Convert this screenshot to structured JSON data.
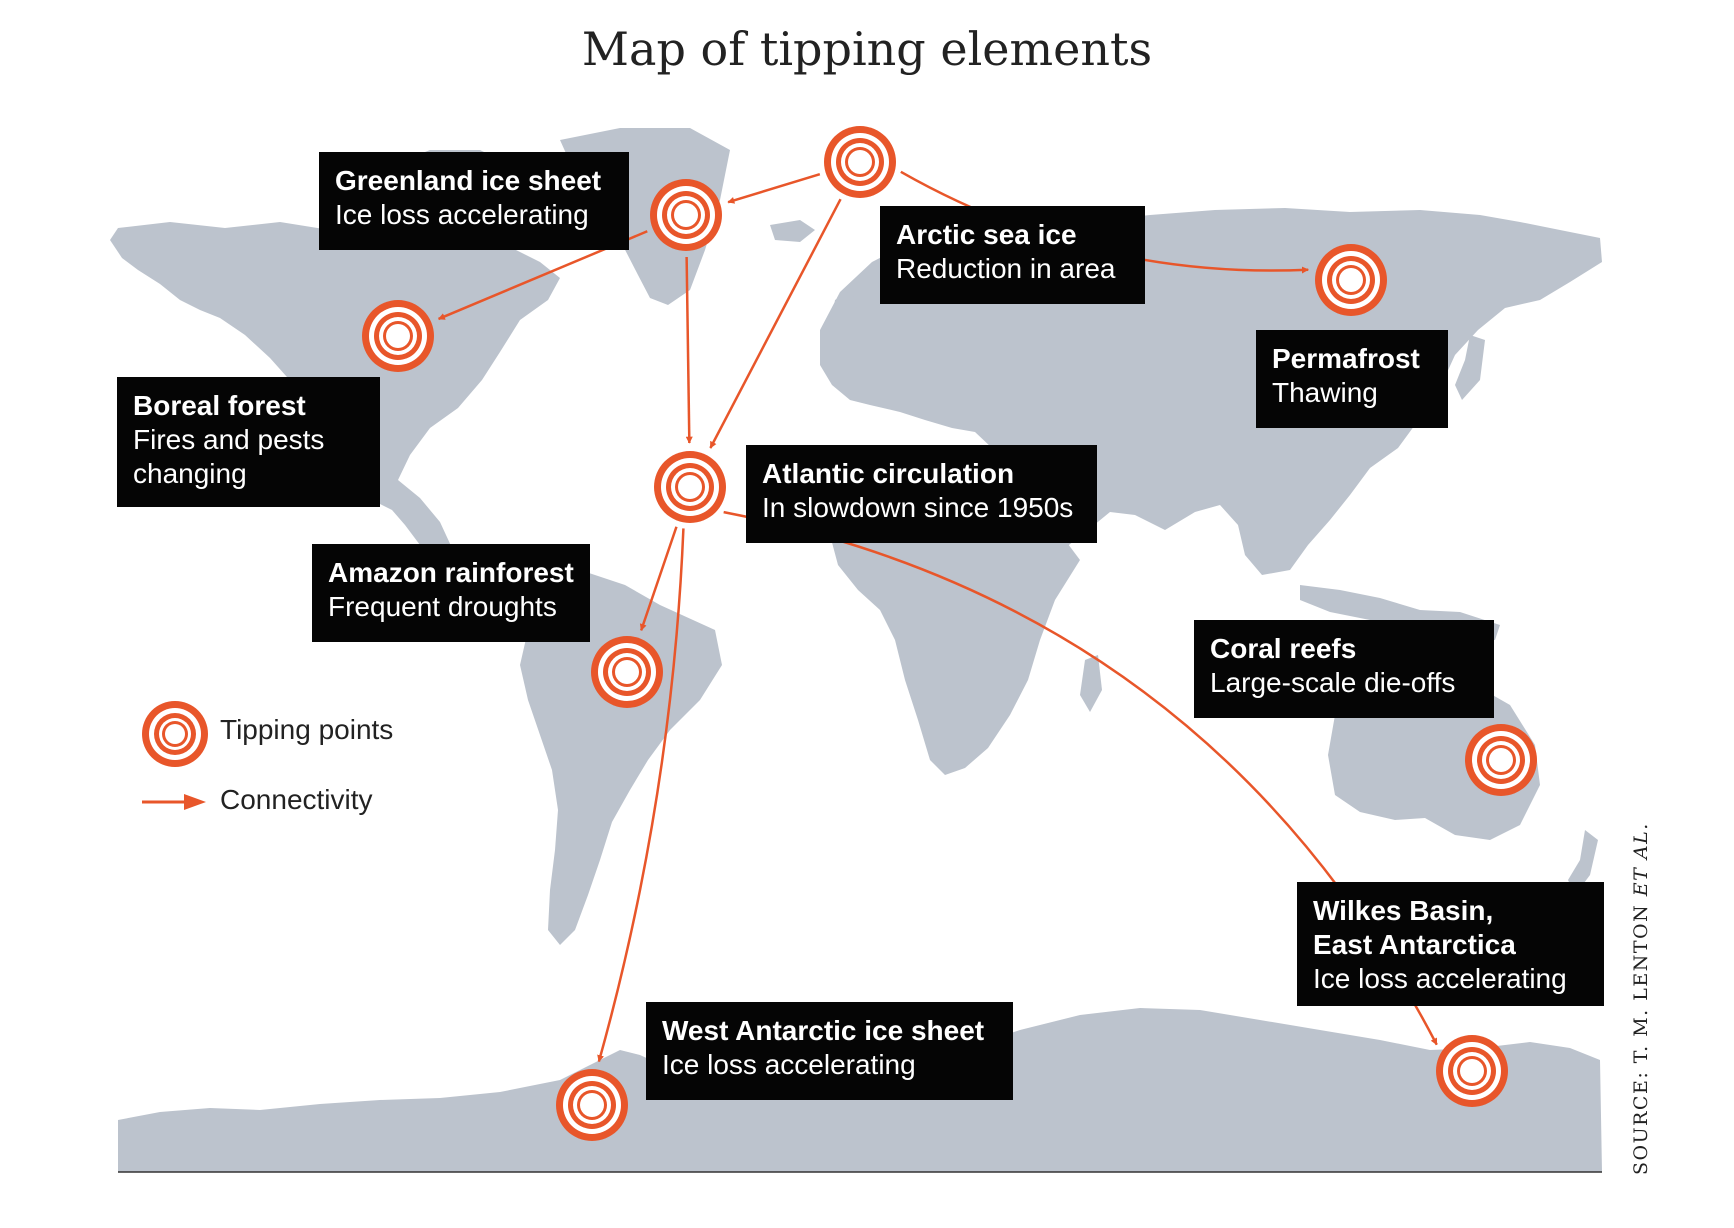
{
  "title": "Map of tipping elements",
  "colors": {
    "land": "#bcc3cd",
    "accent": "#e8562a",
    "label_bg": "#050505"
  },
  "labels": {
    "greenland": {
      "title": "Greenland ice sheet",
      "subtitle": "Ice loss accelerating"
    },
    "arctic": {
      "title": "Arctic sea ice",
      "subtitle": "Reduction in area"
    },
    "permafrost": {
      "title": "Permafrost",
      "subtitle": "Thawing"
    },
    "boreal": {
      "title": "Boreal forest",
      "subtitle_lines": [
        "Fires and pests",
        "changing"
      ]
    },
    "atlantic": {
      "title": "Atlantic circulation",
      "subtitle": "In slowdown since 1950s"
    },
    "amazon": {
      "title": "Amazon rainforest",
      "subtitle": "Frequent droughts"
    },
    "coral": {
      "title": "Coral reefs",
      "subtitle": "Large-scale die-offs"
    },
    "wilkes": {
      "title_lines": [
        "Wilkes Basin,",
        "East Antarctica"
      ],
      "subtitle": "Ice loss accelerating"
    },
    "west_antarctic": {
      "title": "West Antarctic ice sheet",
      "subtitle": "Ice loss accelerating"
    }
  },
  "legend": {
    "tipping_points": "Tipping points",
    "connectivity": "Connectivity"
  },
  "source": {
    "prefix": "SOURCE: T. M. LENTON ",
    "suffix": "ET AL."
  },
  "tipping_points": [
    "Arctic sea ice",
    "Greenland ice sheet",
    "Boreal forest",
    "Permafrost",
    "Atlantic circulation",
    "Amazon rainforest",
    "Coral reefs",
    "Wilkes Basin, East Antarctica",
    "West Antarctic ice sheet"
  ],
  "connections": [
    [
      "Arctic sea ice",
      "Greenland ice sheet"
    ],
    [
      "Arctic sea ice",
      "Permafrost"
    ],
    [
      "Arctic sea ice",
      "Atlantic circulation"
    ],
    [
      "Greenland ice sheet",
      "Boreal forest"
    ],
    [
      "Greenland ice sheet",
      "Atlantic circulation"
    ],
    [
      "Atlantic circulation",
      "Amazon rainforest"
    ],
    [
      "Atlantic circulation",
      "West Antarctic ice sheet"
    ],
    [
      "Atlantic circulation",
      "Wilkes Basin, East Antarctica"
    ]
  ]
}
